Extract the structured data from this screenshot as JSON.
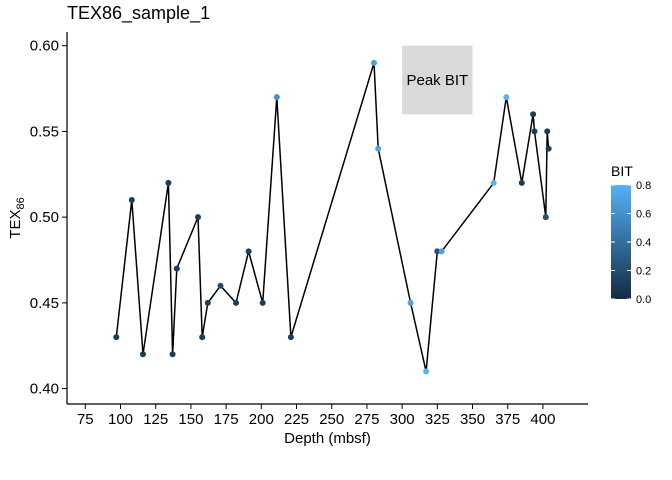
{
  "chart_data": {
    "type": "line",
    "title": "TEX86_sample_1",
    "xlabel": "Depth (mbsf)",
    "ylabel_main": "TEX",
    "ylabel_sub": "86",
    "xlim": [
      62,
      432
    ],
    "ylim": [
      0.391,
      0.608
    ],
    "x_ticks": [
      75,
      100,
      125,
      150,
      175,
      200,
      225,
      250,
      275,
      300,
      325,
      350,
      375,
      400
    ],
    "x_tick_labels": [
      "75",
      "100",
      "125",
      "150",
      "175",
      "200",
      "225",
      "250",
      "275",
      "300",
      "325",
      "350",
      "375",
      "400"
    ],
    "y_ticks": [
      0.4,
      0.45,
      0.5,
      0.55,
      0.6
    ],
    "y_tick_labels": [
      "0.40",
      "0.45",
      "0.50",
      "0.55",
      "0.60"
    ],
    "grid": false,
    "points": [
      {
        "x": 97,
        "y": 0.43,
        "bit": 0.1
      },
      {
        "x": 108,
        "y": 0.51,
        "bit": 0.1
      },
      {
        "x": 116,
        "y": 0.42,
        "bit": 0.1
      },
      {
        "x": 134,
        "y": 0.52,
        "bit": 0.1
      },
      {
        "x": 137,
        "y": 0.42,
        "bit": 0.1
      },
      {
        "x": 140,
        "y": 0.47,
        "bit": 0.1
      },
      {
        "x": 155,
        "y": 0.5,
        "bit": 0.1
      },
      {
        "x": 158,
        "y": 0.43,
        "bit": 0.1
      },
      {
        "x": 162,
        "y": 0.45,
        "bit": 0.1
      },
      {
        "x": 171,
        "y": 0.46,
        "bit": 0.2
      },
      {
        "x": 182,
        "y": 0.45,
        "bit": 0.1
      },
      {
        "x": 191,
        "y": 0.48,
        "bit": 0.1
      },
      {
        "x": 201,
        "y": 0.45,
        "bit": 0.1
      },
      {
        "x": 211,
        "y": 0.57,
        "bit": 0.6
      },
      {
        "x": 221,
        "y": 0.43,
        "bit": 0.1
      },
      {
        "x": 280,
        "y": 0.59,
        "bit": 0.7
      },
      {
        "x": 283,
        "y": 0.54,
        "bit": 0.7
      },
      {
        "x": 306,
        "y": 0.45,
        "bit": 0.7
      },
      {
        "x": 317,
        "y": 0.41,
        "bit": 0.8
      },
      {
        "x": 325,
        "y": 0.48,
        "bit": 0.2
      },
      {
        "x": 328,
        "y": 0.48,
        "bit": 0.7
      },
      {
        "x": 365,
        "y": 0.52,
        "bit": 0.8
      },
      {
        "x": 374,
        "y": 0.57,
        "bit": 0.8
      },
      {
        "x": 385,
        "y": 0.52,
        "bit": 0.1
      },
      {
        "x": 393,
        "y": 0.56,
        "bit": 0.1
      },
      {
        "x": 394,
        "y": 0.55,
        "bit": 0.1
      },
      {
        "x": 402,
        "y": 0.5,
        "bit": 0.2
      },
      {
        "x": 403,
        "y": 0.55,
        "bit": 0.1
      },
      {
        "x": 404,
        "y": 0.54,
        "bit": 0.1
      }
    ],
    "line_color": "#000000",
    "annotation": {
      "label": "Peak BIT",
      "x_range": [
        300,
        350
      ],
      "y_range": [
        0.56,
        0.6
      ],
      "fill": "#d9d9d9"
    },
    "legend": {
      "title": "BIT",
      "position": "right",
      "min": 0.0,
      "max": 0.8,
      "ticks": [
        0.0,
        0.2,
        0.4,
        0.6,
        0.8
      ],
      "tick_labels": [
        "0.0",
        "0.2",
        "0.4",
        "0.6",
        "0.8"
      ],
      "color_low": "#132b43",
      "color_high": "#56b1f7"
    }
  }
}
